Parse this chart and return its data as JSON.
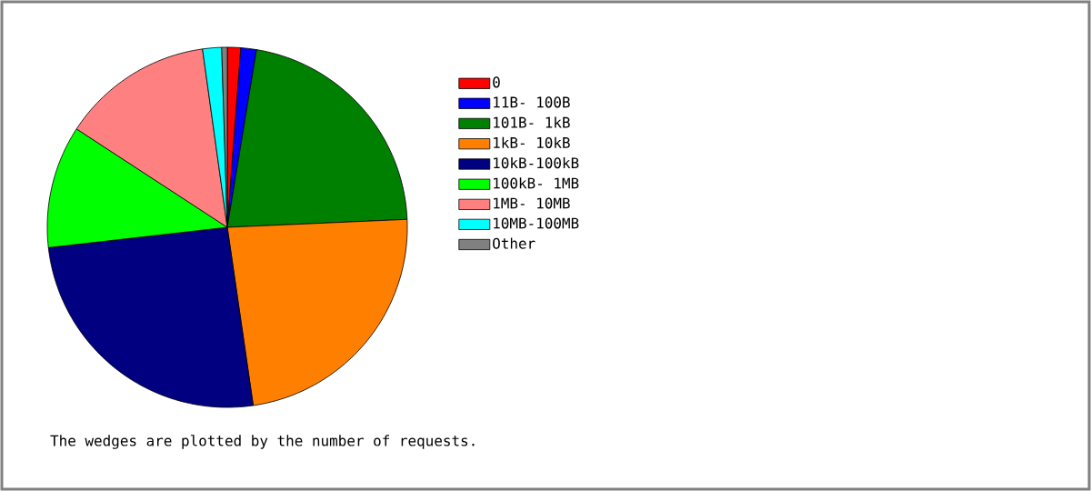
{
  "chart_data": {
    "type": "pie",
    "categories": [
      "0",
      "11B- 100B",
      "101B-  1kB",
      "1kB- 10kB",
      "10kB-100kB",
      "100kB-  1MB",
      "1MB- 10MB",
      "10MB-100MB",
      "Other"
    ],
    "values": [
      1.2,
      1.4,
      21.7,
      23.4,
      25.5,
      11,
      13.6,
      1.7,
      0.5
    ],
    "colors": [
      "#ff0000",
      "#0000ff",
      "#008000",
      "#ff8000",
      "#000080",
      "#00ff00",
      "#ff8080",
      "#00ffff",
      "#808080"
    ],
    "legend": "right",
    "annotations": [
      "The wedges are plotted by the number of requests."
    ]
  }
}
